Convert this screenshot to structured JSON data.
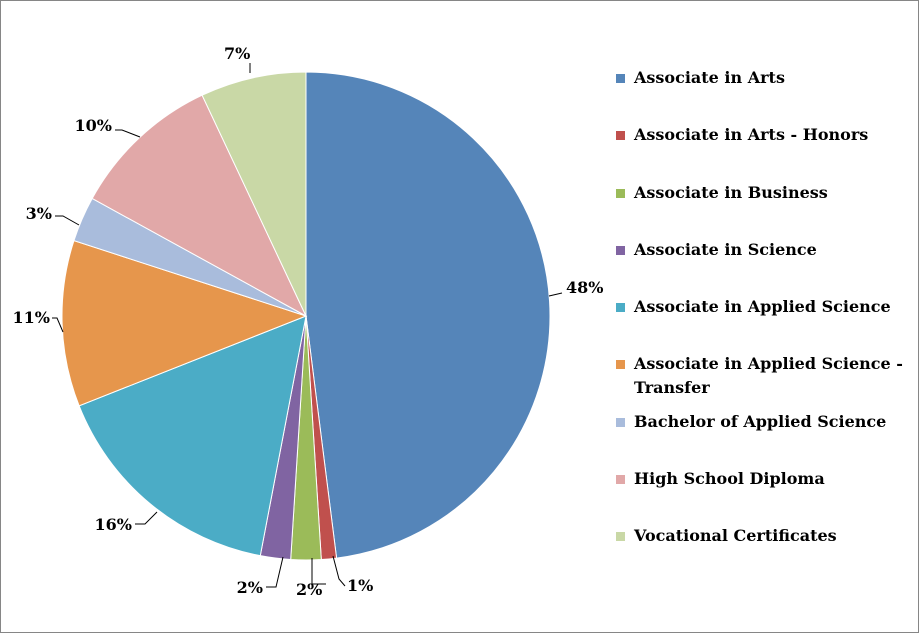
{
  "chart_data": {
    "type": "pie",
    "slices": [
      {
        "label": "Associate in Arts",
        "value": 48,
        "display": "48%",
        "color": "#5585B9"
      },
      {
        "label": "Associate in Arts - Honors",
        "value": 1,
        "display": "1%",
        "color": "#C0504D"
      },
      {
        "label": "Associate in Business",
        "value": 2,
        "display": "2%",
        "color": "#9BBB59"
      },
      {
        "label": "Associate in Science",
        "value": 2,
        "display": "2%",
        "color": "#8064A2"
      },
      {
        "label": "Associate in Applied Science",
        "value": 16,
        "display": "16%",
        "color": "#4BACC6"
      },
      {
        "label": "Associate in Applied Science - Transfer",
        "value": 11,
        "display": "11%",
        "color": "#E6964C"
      },
      {
        "label": "Bachelor of Applied Science",
        "value": 3,
        "display": "3%",
        "color": "#A9BCDC"
      },
      {
        "label": "High School Diploma",
        "value": 10,
        "display": "10%",
        "color": "#E1A8A8"
      },
      {
        "label": "Vocational Certificates",
        "value": 7,
        "display": "7%",
        "color": "#C9D8A6"
      }
    ],
    "legend_position": "right",
    "start_angle": "12 o'clock, clockwise"
  },
  "legend": {
    "items": [
      {
        "label": "Associate in Arts",
        "color": "#5585B9"
      },
      {
        "label": "Associate in Arts - Honors",
        "color": "#C0504D"
      },
      {
        "label": "Associate in Business",
        "color": "#9BBB59"
      },
      {
        "label": "Associate in Science",
        "color": "#8064A2"
      },
      {
        "label": "Associate in Applied Science",
        "color": "#4BACC6"
      },
      {
        "label": "Associate in Applied Science - Transfer",
        "color": "#E6964C"
      },
      {
        "label": "Bachelor of Applied Science",
        "color": "#A9BCDC"
      },
      {
        "label": "High School Diploma",
        "color": "#E1A8A8"
      },
      {
        "label": "Vocational Certificates",
        "color": "#C9D8A6"
      }
    ]
  }
}
